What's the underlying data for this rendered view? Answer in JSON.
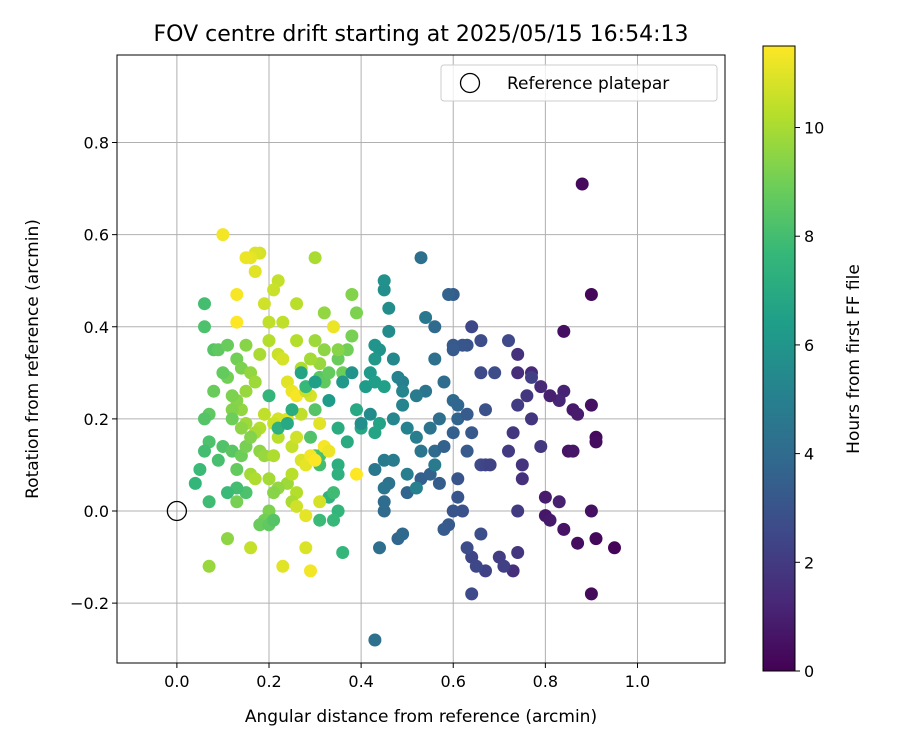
{
  "chart_data": {
    "type": "scatter",
    "title": "FOV centre drift starting at 2025/05/15 16:54:13",
    "xlabel": "Angular distance from reference (arcmin)",
    "ylabel": "Rotation from reference (arcmin)",
    "xlim": [
      -0.13,
      1.19
    ],
    "ylim": [
      -0.33,
      0.99
    ],
    "xticks": [
      0.0,
      0.2,
      0.4,
      0.6,
      0.8,
      1.0
    ],
    "xtick_labels": [
      "0.0",
      "0.2",
      "0.4",
      "0.6",
      "0.8",
      "1.0"
    ],
    "yticks": [
      -0.2,
      0.0,
      0.2,
      0.4,
      0.6,
      0.8
    ],
    "ytick_labels": [
      "−0.2",
      "0.0",
      "0.2",
      "0.4",
      "0.6",
      "0.8"
    ],
    "grid": true,
    "legend": {
      "entries": [
        "Reference platepar"
      ],
      "placement": "top-right"
    },
    "reference_point": {
      "x": 0.0,
      "y": 0.0,
      "marker": "open-circle"
    },
    "colorbar": {
      "label": "Hours from first FF file",
      "min": 0,
      "max": 11.5,
      "ticks": [
        0,
        2,
        4,
        6,
        8,
        10
      ],
      "tick_labels": [
        "0",
        "2",
        "4",
        "6",
        "8",
        "10"
      ],
      "colormap": "viridis"
    },
    "colormap_stops": [
      "#440154",
      "#482878",
      "#3e4989",
      "#31688e",
      "#26828e",
      "#1f9e89",
      "#35b779",
      "#6ece58",
      "#b5de2b",
      "#fde725"
    ],
    "points": [
      [
        0.88,
        0.71,
        0.3
      ],
      [
        0.9,
        0.47,
        0.2
      ],
      [
        0.84,
        0.39,
        0.5
      ],
      [
        0.95,
        -0.08,
        0.1
      ],
      [
        0.91,
        -0.06,
        0.2
      ],
      [
        0.9,
        -0.18,
        0.3
      ],
      [
        0.87,
        -0.07,
        0.4
      ],
      [
        0.84,
        -0.04,
        0.6
      ],
      [
        0.9,
        0.0,
        0.5
      ],
      [
        0.8,
        -0.01,
        0.7
      ],
      [
        0.81,
        -0.02,
        0.8
      ],
      [
        0.8,
        0.03,
        0.9
      ],
      [
        0.83,
        0.02,
        1.0
      ],
      [
        0.91,
        0.16,
        0.3
      ],
      [
        0.91,
        0.15,
        0.4
      ],
      [
        0.85,
        0.13,
        0.6
      ],
      [
        0.86,
        0.13,
        0.7
      ],
      [
        0.9,
        0.23,
        0.5
      ],
      [
        0.86,
        0.22,
        0.8
      ],
      [
        0.87,
        0.21,
        0.9
      ],
      [
        0.84,
        0.26,
        1.1
      ],
      [
        0.83,
        0.24,
        1.2
      ],
      [
        0.81,
        0.25,
        1.0
      ],
      [
        0.79,
        0.27,
        1.3
      ],
      [
        0.77,
        0.3,
        1.4
      ],
      [
        0.74,
        0.3,
        1.5
      ],
      [
        0.74,
        0.34,
        1.6
      ],
      [
        0.77,
        0.2,
        1.8
      ],
      [
        0.79,
        0.14,
        1.9
      ],
      [
        0.75,
        0.1,
        1.7
      ],
      [
        0.75,
        0.07,
        1.6
      ],
      [
        0.74,
        0.0,
        2.0
      ],
      [
        0.73,
        -0.13,
        1.5
      ],
      [
        0.74,
        -0.09,
        1.8
      ],
      [
        0.7,
        -0.1,
        2.1
      ],
      [
        0.71,
        -0.12,
        2.2
      ],
      [
        0.67,
        -0.13,
        2.3
      ],
      [
        0.64,
        -0.1,
        2.4
      ],
      [
        0.65,
        -0.12,
        2.5
      ],
      [
        0.64,
        -0.18,
        2.6
      ],
      [
        0.63,
        -0.08,
        2.7
      ],
      [
        0.66,
        -0.05,
        2.8
      ],
      [
        0.62,
        0.0,
        2.9
      ],
      [
        0.6,
        0.0,
        3.0
      ],
      [
        0.61,
        0.03,
        3.1
      ],
      [
        0.59,
        -0.03,
        3.2
      ],
      [
        0.58,
        -0.04,
        3.3
      ],
      [
        0.61,
        0.07,
        3.0
      ],
      [
        0.57,
        0.06,
        3.4
      ],
      [
        0.53,
        0.07,
        3.5
      ],
      [
        0.55,
        0.08,
        3.6
      ],
      [
        0.5,
        0.04,
        3.7
      ],
      [
        0.48,
        -0.06,
        3.8
      ],
      [
        0.49,
        -0.05,
        3.9
      ],
      [
        0.45,
        0.0,
        4.0
      ],
      [
        0.45,
        0.02,
        4.1
      ],
      [
        0.44,
        -0.08,
        4.2
      ],
      [
        0.43,
        -0.28,
        4.3
      ],
      [
        0.46,
        0.06,
        4.4
      ],
      [
        0.45,
        0.05,
        4.5
      ],
      [
        0.43,
        0.09,
        4.6
      ],
      [
        0.45,
        0.11,
        4.7
      ],
      [
        0.47,
        0.11,
        4.8
      ],
      [
        0.5,
        0.08,
        4.9
      ],
      [
        0.52,
        0.05,
        5.0
      ],
      [
        0.53,
        0.13,
        4.5
      ],
      [
        0.56,
        0.13,
        4.0
      ],
      [
        0.58,
        0.14,
        3.6
      ],
      [
        0.6,
        0.17,
        3.5
      ],
      [
        0.63,
        0.13,
        3.3
      ],
      [
        0.64,
        0.17,
        3.2
      ],
      [
        0.66,
        0.1,
        2.6
      ],
      [
        0.67,
        0.1,
        2.4
      ],
      [
        0.68,
        0.1,
        2.3
      ],
      [
        0.72,
        0.13,
        2.0
      ],
      [
        0.73,
        0.17,
        1.9
      ],
      [
        0.74,
        0.23,
        2.1
      ],
      [
        0.76,
        0.25,
        1.9
      ],
      [
        0.77,
        0.29,
        2.2
      ],
      [
        0.72,
        0.37,
        2.6
      ],
      [
        0.66,
        0.37,
        2.7
      ],
      [
        0.64,
        0.4,
        2.5
      ],
      [
        0.63,
        0.36,
        3.0
      ],
      [
        0.62,
        0.36,
        3.1
      ],
      [
        0.6,
        0.36,
        3.2
      ],
      [
        0.6,
        0.35,
        3.3
      ],
      [
        0.6,
        0.47,
        3.4
      ],
      [
        0.59,
        0.47,
        3.6
      ],
      [
        0.56,
        0.4,
        4.0
      ],
      [
        0.56,
        0.33,
        4.3
      ],
      [
        0.58,
        0.28,
        4.1
      ],
      [
        0.6,
        0.24,
        3.9
      ],
      [
        0.61,
        0.23,
        3.8
      ],
      [
        0.61,
        0.2,
        3.7
      ],
      [
        0.63,
        0.21,
        3.3
      ],
      [
        0.67,
        0.22,
        2.9
      ],
      [
        0.69,
        0.3,
        2.7
      ],
      [
        0.66,
        0.3,
        2.6
      ],
      [
        0.57,
        0.2,
        4.2
      ],
      [
        0.55,
        0.18,
        4.4
      ],
      [
        0.54,
        0.26,
        4.5
      ],
      [
        0.53,
        0.55,
        4.2
      ],
      [
        0.54,
        0.42,
        4.6
      ],
      [
        0.52,
        0.25,
        4.8
      ],
      [
        0.49,
        0.28,
        5.0
      ],
      [
        0.48,
        0.29,
        5.1
      ],
      [
        0.49,
        0.23,
        5.2
      ],
      [
        0.49,
        0.26,
        5.3
      ],
      [
        0.47,
        0.33,
        5.4
      ],
      [
        0.46,
        0.39,
        5.5
      ],
      [
        0.46,
        0.44,
        5.6
      ],
      [
        0.45,
        0.48,
        5.7
      ],
      [
        0.45,
        0.5,
        5.8
      ],
      [
        0.44,
        0.35,
        5.9
      ],
      [
        0.43,
        0.36,
        6.0
      ],
      [
        0.43,
        0.33,
        6.1
      ],
      [
        0.42,
        0.3,
        6.2
      ],
      [
        0.41,
        0.27,
        6.3
      ],
      [
        0.43,
        0.28,
        6.4
      ],
      [
        0.45,
        0.27,
        6.5
      ],
      [
        0.44,
        0.19,
        6.6
      ],
      [
        0.43,
        0.17,
        6.7
      ],
      [
        0.4,
        0.18,
        6.8
      ],
      [
        0.39,
        0.22,
        6.9
      ],
      [
        0.37,
        0.15,
        7.0
      ],
      [
        0.35,
        0.18,
        7.1
      ],
      [
        0.35,
        0.1,
        7.2
      ],
      [
        0.35,
        0.08,
        7.3
      ],
      [
        0.33,
        0.03,
        7.4
      ],
      [
        0.35,
        0.0,
        7.5
      ],
      [
        0.36,
        -0.09,
        7.6
      ],
      [
        0.34,
        -0.02,
        7.7
      ],
      [
        0.31,
        -0.02,
        7.8
      ],
      [
        0.34,
        0.04,
        7.9
      ],
      [
        0.31,
        0.1,
        8.0
      ],
      [
        0.31,
        0.12,
        8.1
      ],
      [
        0.3,
        0.12,
        8.2
      ],
      [
        0.29,
        0.16,
        8.3
      ],
      [
        0.3,
        0.22,
        8.4
      ],
      [
        0.31,
        0.29,
        8.5
      ],
      [
        0.32,
        0.28,
        8.6
      ],
      [
        0.33,
        0.3,
        8.7
      ],
      [
        0.35,
        0.33,
        8.8
      ],
      [
        0.36,
        0.3,
        8.9
      ],
      [
        0.37,
        0.35,
        9.0
      ],
      [
        0.38,
        0.38,
        9.1
      ],
      [
        0.39,
        0.43,
        9.2
      ],
      [
        0.38,
        0.47,
        9.3
      ],
      [
        0.35,
        0.35,
        9.4
      ],
      [
        0.32,
        0.35,
        9.5
      ],
      [
        0.32,
        0.43,
        9.6
      ],
      [
        0.31,
        0.32,
        9.7
      ],
      [
        0.3,
        0.37,
        9.8
      ],
      [
        0.29,
        0.33,
        9.9
      ],
      [
        0.3,
        0.55,
        10.0
      ],
      [
        0.27,
        0.31,
        10.1
      ],
      [
        0.26,
        0.37,
        10.2
      ],
      [
        0.26,
        0.45,
        10.3
      ],
      [
        0.23,
        0.41,
        10.4
      ],
      [
        0.22,
        0.5,
        10.5
      ],
      [
        0.21,
        0.48,
        10.6
      ],
      [
        0.19,
        0.45,
        10.7
      ],
      [
        0.18,
        0.56,
        10.8
      ],
      [
        0.17,
        0.56,
        10.9
      ],
      [
        0.17,
        0.52,
        11.0
      ],
      [
        0.16,
        0.55,
        11.1
      ],
      [
        0.15,
        0.55,
        11.2
      ],
      [
        0.1,
        0.6,
        11.3
      ],
      [
        0.13,
        0.47,
        11.4
      ],
      [
        0.13,
        0.41,
        11.5
      ],
      [
        0.06,
        0.45,
        8.0
      ],
      [
        0.06,
        0.4,
        8.2
      ],
      [
        0.08,
        0.35,
        8.4
      ],
      [
        0.09,
        0.35,
        8.6
      ],
      [
        0.11,
        0.36,
        8.8
      ],
      [
        0.13,
        0.33,
        9.0
      ],
      [
        0.14,
        0.31,
        9.2
      ],
      [
        0.15,
        0.36,
        9.4
      ],
      [
        0.16,
        0.3,
        9.6
      ],
      [
        0.17,
        0.28,
        9.8
      ],
      [
        0.18,
        0.34,
        10.0
      ],
      [
        0.2,
        0.37,
        10.2
      ],
      [
        0.2,
        0.41,
        10.4
      ],
      [
        0.22,
        0.34,
        10.6
      ],
      [
        0.23,
        0.33,
        10.8
      ],
      [
        0.24,
        0.28,
        11.0
      ],
      [
        0.25,
        0.26,
        11.2
      ],
      [
        0.26,
        0.25,
        11.4
      ],
      [
        0.24,
        0.2,
        11.0
      ],
      [
        0.22,
        0.2,
        10.8
      ],
      [
        0.21,
        0.19,
        10.6
      ],
      [
        0.19,
        0.21,
        10.4
      ],
      [
        0.18,
        0.18,
        10.2
      ],
      [
        0.17,
        0.17,
        10.0
      ],
      [
        0.15,
        0.19,
        9.8
      ],
      [
        0.14,
        0.22,
        9.6
      ],
      [
        0.13,
        0.24,
        9.4
      ],
      [
        0.12,
        0.25,
        9.2
      ],
      [
        0.11,
        0.29,
        9.0
      ],
      [
        0.08,
        0.26,
        8.8
      ],
      [
        0.07,
        0.21,
        8.6
      ],
      [
        0.06,
        0.2,
        8.4
      ],
      [
        0.07,
        0.15,
        8.2
      ],
      [
        0.06,
        0.13,
        8.0
      ],
      [
        0.05,
        0.09,
        7.8
      ],
      [
        0.04,
        0.06,
        7.6
      ],
      [
        0.07,
        0.02,
        7.9
      ],
      [
        0.09,
        0.11,
        8.1
      ],
      [
        0.1,
        0.14,
        8.3
      ],
      [
        0.12,
        0.13,
        8.5
      ],
      [
        0.13,
        0.09,
        8.7
      ],
      [
        0.14,
        0.12,
        8.9
      ],
      [
        0.15,
        0.14,
        9.1
      ],
      [
        0.16,
        0.16,
        9.3
      ],
      [
        0.18,
        0.13,
        9.5
      ],
      [
        0.19,
        0.12,
        9.7
      ],
      [
        0.2,
        0.07,
        9.9
      ],
      [
        0.21,
        0.12,
        10.1
      ],
      [
        0.22,
        0.16,
        10.3
      ],
      [
        0.25,
        0.14,
        10.5
      ],
      [
        0.26,
        0.16,
        10.7
      ],
      [
        0.27,
        0.11,
        10.9
      ],
      [
        0.28,
        0.1,
        11.1
      ],
      [
        0.29,
        0.12,
        11.3
      ],
      [
        0.3,
        0.11,
        11.5
      ],
      [
        0.32,
        0.14,
        11.4
      ],
      [
        0.33,
        0.13,
        11.2
      ],
      [
        0.31,
        0.19,
        11.0
      ],
      [
        0.29,
        0.25,
        10.8
      ],
      [
        0.28,
        0.26,
        10.6
      ],
      [
        0.27,
        0.21,
        10.4
      ],
      [
        0.26,
        0.04,
        10.2
      ],
      [
        0.25,
        0.02,
        10.0
      ],
      [
        0.24,
        0.06,
        9.8
      ],
      [
        0.22,
        0.05,
        9.6
      ],
      [
        0.21,
        0.04,
        9.4
      ],
      [
        0.2,
        0.0,
        9.2
      ],
      [
        0.19,
        -0.02,
        9.0
      ],
      [
        0.18,
        -0.03,
        8.8
      ],
      [
        0.2,
        -0.03,
        8.6
      ],
      [
        0.21,
        -0.02,
        8.4
      ],
      [
        0.15,
        0.04,
        8.2
      ],
      [
        0.13,
        0.05,
        8.0
      ],
      [
        0.11,
        0.04,
        7.8
      ],
      [
        0.11,
        -0.06,
        9.5
      ],
      [
        0.07,
        -0.12,
        9.7
      ],
      [
        0.16,
        -0.08,
        10.5
      ],
      [
        0.23,
        -0.12,
        11.0
      ],
      [
        0.28,
        -0.08,
        10.9
      ],
      [
        0.29,
        -0.13,
        11.3
      ],
      [
        0.28,
        -0.01,
        11.1
      ],
      [
        0.26,
        0.01,
        10.7
      ],
      [
        0.31,
        0.02,
        10.8
      ],
      [
        0.39,
        0.08,
        11.5
      ],
      [
        0.34,
        0.4,
        11.2
      ],
      [
        0.25,
        0.08,
        10.3
      ],
      [
        0.16,
        0.08,
        9.9
      ],
      [
        0.17,
        0.07,
        10.1
      ],
      [
        0.13,
        0.02,
        9.1
      ],
      [
        0.12,
        0.22,
        9.3
      ],
      [
        0.14,
        0.18,
        9.5
      ],
      [
        0.15,
        0.26,
        9.7
      ],
      [
        0.12,
        0.2,
        8.9
      ],
      [
        0.1,
        0.3,
        8.7
      ],
      [
        0.2,
        0.25,
        7.5
      ],
      [
        0.22,
        0.18,
        7.3
      ],
      [
        0.25,
        0.22,
        7.1
      ],
      [
        0.24,
        0.19,
        6.9
      ],
      [
        0.27,
        0.3,
        6.7
      ],
      [
        0.28,
        0.27,
        7.7
      ],
      [
        0.3,
        0.28,
        6.5
      ],
      [
        0.33,
        0.24,
        6.3
      ],
      [
        0.36,
        0.28,
        6.1
      ],
      [
        0.38,
        0.3,
        5.9
      ],
      [
        0.4,
        0.19,
        5.7
      ],
      [
        0.42,
        0.21,
        5.5
      ],
      [
        0.47,
        0.2,
        5.3
      ],
      [
        0.5,
        0.18,
        5.1
      ],
      [
        0.52,
        0.16,
        4.9
      ],
      [
        0.56,
        0.1,
        4.7
      ]
    ]
  }
}
